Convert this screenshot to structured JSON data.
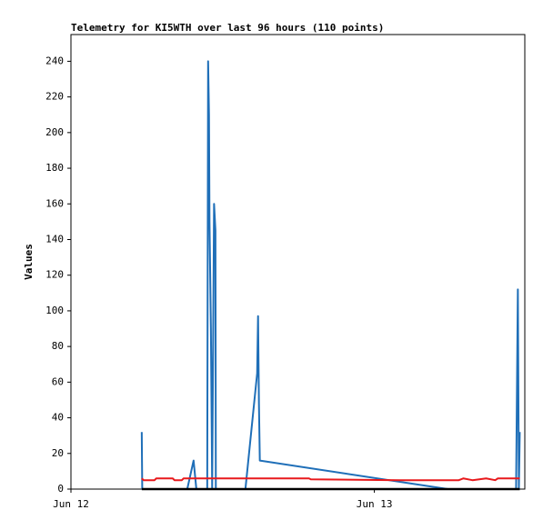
{
  "chart_data": {
    "type": "line",
    "title": "Telemetry for KI5WTH over last 96 hours (110 points)",
    "y_label": "Values",
    "xlim": [
      0,
      35.9
    ],
    "xticks": [
      {
        "value": 0,
        "label": "Jun 12"
      },
      {
        "value": 24,
        "label": "Jun 13"
      }
    ],
    "ylim": [
      0,
      255
    ],
    "yticks": [
      0,
      20,
      40,
      60,
      80,
      100,
      120,
      140,
      160,
      180,
      200,
      220,
      240
    ],
    "series": [
      {
        "name": "blue",
        "color": "#1f6fb8",
        "x": [
          5.6,
          5.64,
          9.2,
          9.7,
          9.92,
          10.78,
          10.85,
          10.92,
          10.96,
          11.07,
          11.14,
          11.17,
          11.32,
          11.43,
          11.46,
          13.8,
          14.73,
          14.8,
          14.87,
          14.94,
          29.82,
          35.21,
          35.28,
          35.35,
          35.43,
          35.5
        ],
        "values": [
          32,
          0,
          0,
          16,
          0,
          0,
          240,
          210,
          150,
          90,
          30,
          0,
          160,
          145,
          0,
          0,
          65,
          97,
          48,
          16,
          0,
          0,
          56,
          112,
          0,
          32
        ]
      },
      {
        "name": "red",
        "color": "#e8191c",
        "x": [
          5.6,
          5.75,
          6.61,
          6.75,
          8.05,
          8.19,
          8.77,
          8.91,
          18.83,
          18.97,
          26.01,
          30.68,
          31.04,
          31.76,
          32.84,
          33.56,
          33.77,
          35.5
        ],
        "values": [
          6,
          5,
          5,
          6,
          6,
          5,
          5,
          6,
          6,
          5.5,
          5,
          5,
          6,
          5,
          6,
          5,
          6,
          6
        ]
      },
      {
        "name": "black",
        "color": "#000000",
        "x": [
          5.6,
          35.5
        ],
        "values": [
          0,
          0
        ]
      }
    ]
  }
}
